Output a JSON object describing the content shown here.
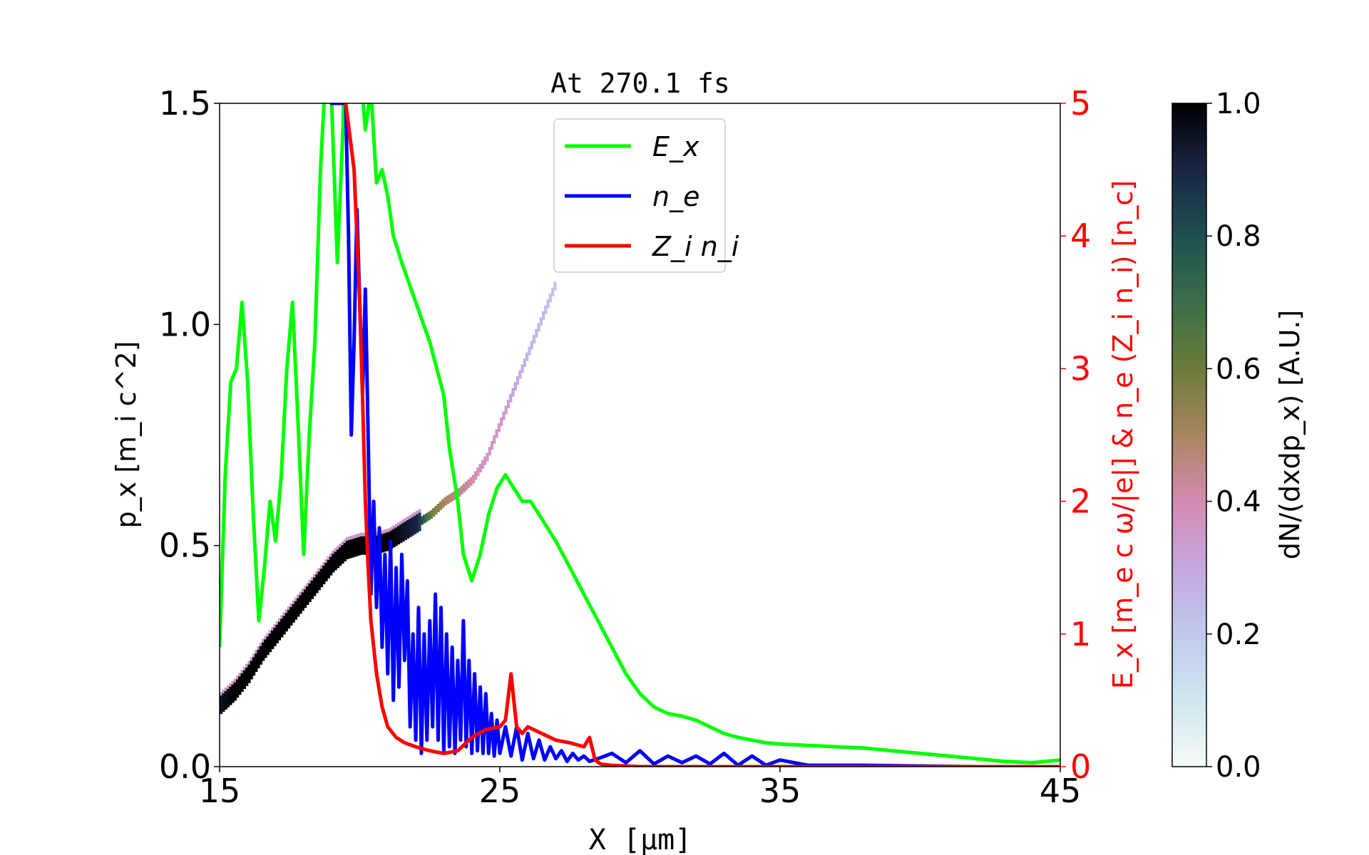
{
  "chart_data": {
    "type": "line",
    "title": "At 270.1 fs",
    "xlabel": "X [μm]",
    "ylabel_left": "p_x [m_i c^2]",
    "ylabel_right": "E_x [m_e c ω/|e|] & n_e (Z_i n_i) [n_c]",
    "colorbar_label": "dN/(dxdp_x) [A.U.]",
    "xlim": [
      15,
      45
    ],
    "ylim_left": [
      0,
      1.5
    ],
    "ylim_right": [
      0,
      5
    ],
    "clim": [
      0,
      1
    ],
    "x_ticks": [
      15,
      25,
      35,
      45
    ],
    "x_tick_labels": [
      "15",
      "25",
      "35",
      "45"
    ],
    "yleft_ticks": [
      0,
      0.5,
      1.0,
      1.5
    ],
    "yleft_tick_labels": [
      "0.0",
      "0.5",
      "1.0",
      "1.5"
    ],
    "yright_ticks": [
      0,
      1,
      2,
      3,
      4,
      5
    ],
    "yright_tick_labels": [
      "0",
      "1",
      "2",
      "3",
      "4",
      "5"
    ],
    "colorbar_ticks": [
      0,
      0.2,
      0.4,
      0.6,
      0.8,
      1.0
    ],
    "colorbar_tick_labels": [
      "0.0",
      "0.2",
      "0.4",
      "0.6",
      "0.8",
      "1.0"
    ],
    "legend": {
      "position": "upper-center",
      "entries": [
        {
          "label": "E_x",
          "color": "#00ff00"
        },
        {
          "label": "n_e",
          "color": "#0000ff"
        },
        {
          "label": "Z_i n_i",
          "color": "#ff0000"
        }
      ]
    },
    "colors": {
      "Ex": "#00ff00",
      "ne": "#0000ff",
      "Zni": "#ff0000",
      "right_axis": "#ff0000"
    },
    "series": [
      {
        "name": "E_x",
        "axis": "right",
        "color": "#00ff00",
        "x": [
          15.0,
          15.2,
          15.4,
          15.6,
          15.8,
          16.0,
          16.2,
          16.4,
          16.6,
          16.8,
          17.0,
          17.2,
          17.4,
          17.6,
          17.8,
          18.0,
          18.2,
          18.4,
          18.6,
          18.8,
          19.0,
          19.2,
          19.4,
          19.6,
          19.8,
          20.0,
          20.2,
          20.4,
          20.6,
          20.8,
          21.0,
          21.2,
          21.5,
          22.0,
          22.5,
          23.0,
          23.2,
          23.5,
          23.7,
          24.0,
          24.3,
          24.6,
          24.9,
          25.2,
          25.5,
          25.8,
          26.1,
          26.4,
          26.7,
          27.0,
          27.5,
          28.0,
          28.5,
          29.0,
          29.5,
          30.0,
          30.5,
          31.0,
          31.5,
          32.0,
          32.5,
          33.0,
          33.5,
          34.0,
          34.5,
          35.0,
          36.0,
          37.0,
          38.0,
          39.0,
          40.0,
          41.0,
          42.0,
          43.0,
          44.0,
          45.0
        ],
        "y": [
          0.9,
          2.2,
          2.9,
          3.0,
          3.5,
          2.9,
          1.9,
          1.1,
          1.5,
          2.0,
          1.7,
          2.2,
          3.0,
          3.5,
          2.6,
          1.6,
          2.5,
          3.2,
          4.5,
          5.3,
          5.0,
          3.8,
          4.8,
          6.5,
          6.0,
          5.3,
          4.8,
          5.1,
          4.4,
          4.5,
          4.3,
          4.0,
          3.8,
          3.5,
          3.2,
          2.8,
          2.4,
          2.0,
          1.6,
          1.4,
          1.6,
          1.9,
          2.1,
          2.2,
          2.1,
          2.0,
          2.0,
          1.9,
          1.8,
          1.7,
          1.5,
          1.3,
          1.1,
          0.9,
          0.7,
          0.55,
          0.45,
          0.4,
          0.38,
          0.35,
          0.3,
          0.25,
          0.22,
          0.2,
          0.18,
          0.17,
          0.16,
          0.15,
          0.14,
          0.12,
          0.1,
          0.08,
          0.06,
          0.04,
          0.03,
          0.05
        ]
      },
      {
        "name": "n_e",
        "axis": "right",
        "color": "#0000ff",
        "x": [
          18.95,
          19.1,
          19.3,
          19.4,
          19.5,
          19.6,
          19.7,
          19.8,
          19.9,
          20.0,
          20.1,
          20.2,
          20.3,
          20.4,
          20.5,
          20.6,
          20.7,
          20.8,
          20.9,
          21.0,
          21.1,
          21.2,
          21.3,
          21.4,
          21.5,
          21.6,
          21.7,
          21.8,
          21.9,
          22.0,
          22.1,
          22.2,
          22.3,
          22.4,
          22.5,
          22.6,
          22.7,
          22.8,
          22.9,
          23.0,
          23.1,
          23.2,
          23.3,
          23.4,
          23.5,
          23.6,
          23.7,
          23.8,
          23.9,
          24.0,
          24.1,
          24.2,
          24.3,
          24.4,
          24.5,
          24.6,
          24.7,
          24.8,
          24.9,
          25.0,
          25.2,
          25.4,
          25.6,
          25.8,
          26.0,
          26.2,
          26.4,
          26.6,
          26.8,
          27.0,
          27.2,
          27.4,
          27.6,
          27.8,
          28.0,
          28.2,
          28.5,
          29.0,
          29.5,
          30.0,
          30.5,
          31.0,
          31.5,
          32.0,
          32.5,
          33.0,
          33.5,
          34.0,
          34.5,
          35.0,
          36.0,
          38.0,
          40.0,
          42.0,
          45.0
        ],
        "y": [
          5.0,
          5.0,
          5.0,
          5.0,
          5.0,
          4.0,
          2.5,
          3.2,
          4.2,
          3.5,
          2.8,
          3.6,
          2.5,
          1.3,
          2.0,
          1.2,
          1.8,
          0.9,
          1.6,
          0.7,
          1.7,
          0.5,
          1.5,
          0.6,
          1.6,
          0.8,
          1.4,
          0.3,
          1.0,
          0.2,
          1.2,
          0.1,
          1.0,
          0.2,
          1.1,
          0.3,
          1.3,
          0.2,
          1.2,
          0.1,
          1.0,
          0.15,
          0.9,
          0.1,
          0.8,
          0.2,
          1.1,
          0.15,
          0.8,
          0.1,
          0.7,
          0.12,
          0.6,
          0.1,
          0.55,
          0.1,
          0.4,
          0.08,
          0.35,
          0.1,
          0.3,
          0.08,
          0.3,
          0.05,
          0.25,
          0.06,
          0.2,
          0.05,
          0.15,
          0.06,
          0.12,
          0.04,
          0.1,
          0.05,
          0.08,
          0.04,
          0.06,
          0.1,
          0.03,
          0.12,
          0.02,
          0.08,
          0.03,
          0.08,
          0.02,
          0.1,
          0.01,
          0.08,
          0.01,
          0.05,
          0.01,
          0.01,
          0.005,
          0.0,
          0.0
        ]
      },
      {
        "name": "Z_i n_i",
        "axis": "right",
        "color": "#ff0000",
        "x": [
          19.5,
          19.8,
          20.0,
          20.1,
          20.2,
          20.3,
          20.4,
          20.6,
          20.8,
          21.0,
          21.3,
          21.6,
          22.0,
          22.5,
          23.0,
          23.5,
          24.0,
          24.5,
          25.0,
          25.2,
          25.4,
          25.6,
          25.8,
          26.0,
          26.5,
          27.0,
          27.5,
          28.0,
          28.2,
          28.4,
          28.6,
          29.0,
          30.0,
          32.0,
          35.0,
          40.0,
          45.0
        ],
        "y": [
          5.0,
          4.5,
          3.5,
          2.8,
          2.0,
          1.5,
          1.1,
          0.7,
          0.45,
          0.3,
          0.22,
          0.18,
          0.15,
          0.12,
          0.1,
          0.12,
          0.22,
          0.28,
          0.3,
          0.35,
          0.7,
          0.3,
          0.25,
          0.3,
          0.25,
          0.2,
          0.18,
          0.15,
          0.22,
          0.05,
          0.02,
          0.01,
          0.0,
          0.0,
          0.0,
          0.0,
          0.0
        ]
      }
    ],
    "heatmap": {
      "description": "ion phase-space density",
      "x": [
        15.0,
        15.5,
        16.0,
        16.5,
        17.0,
        17.5,
        18.0,
        18.5,
        19.0,
        19.5,
        20.0,
        20.5,
        21.0,
        21.5,
        22.0,
        22.5,
        23.0,
        23.5,
        24.0,
        24.5,
        25.0,
        25.5,
        26.0,
        26.5,
        27.0
      ],
      "p": [
        0.14,
        0.17,
        0.21,
        0.26,
        0.3,
        0.34,
        0.38,
        0.42,
        0.46,
        0.49,
        0.5,
        0.5,
        0.51,
        0.53,
        0.55,
        0.57,
        0.6,
        0.62,
        0.65,
        0.7,
        0.78,
        0.86,
        0.94,
        1.02,
        1.1
      ],
      "density": [
        0.95,
        1.0,
        1.0,
        1.0,
        1.0,
        1.0,
        1.0,
        1.0,
        1.0,
        1.0,
        1.0,
        1.0,
        1.0,
        0.95,
        0.9,
        0.6,
        0.5,
        0.45,
        0.4,
        0.35,
        0.35,
        0.3,
        0.25,
        0.25,
        0.2
      ]
    }
  }
}
